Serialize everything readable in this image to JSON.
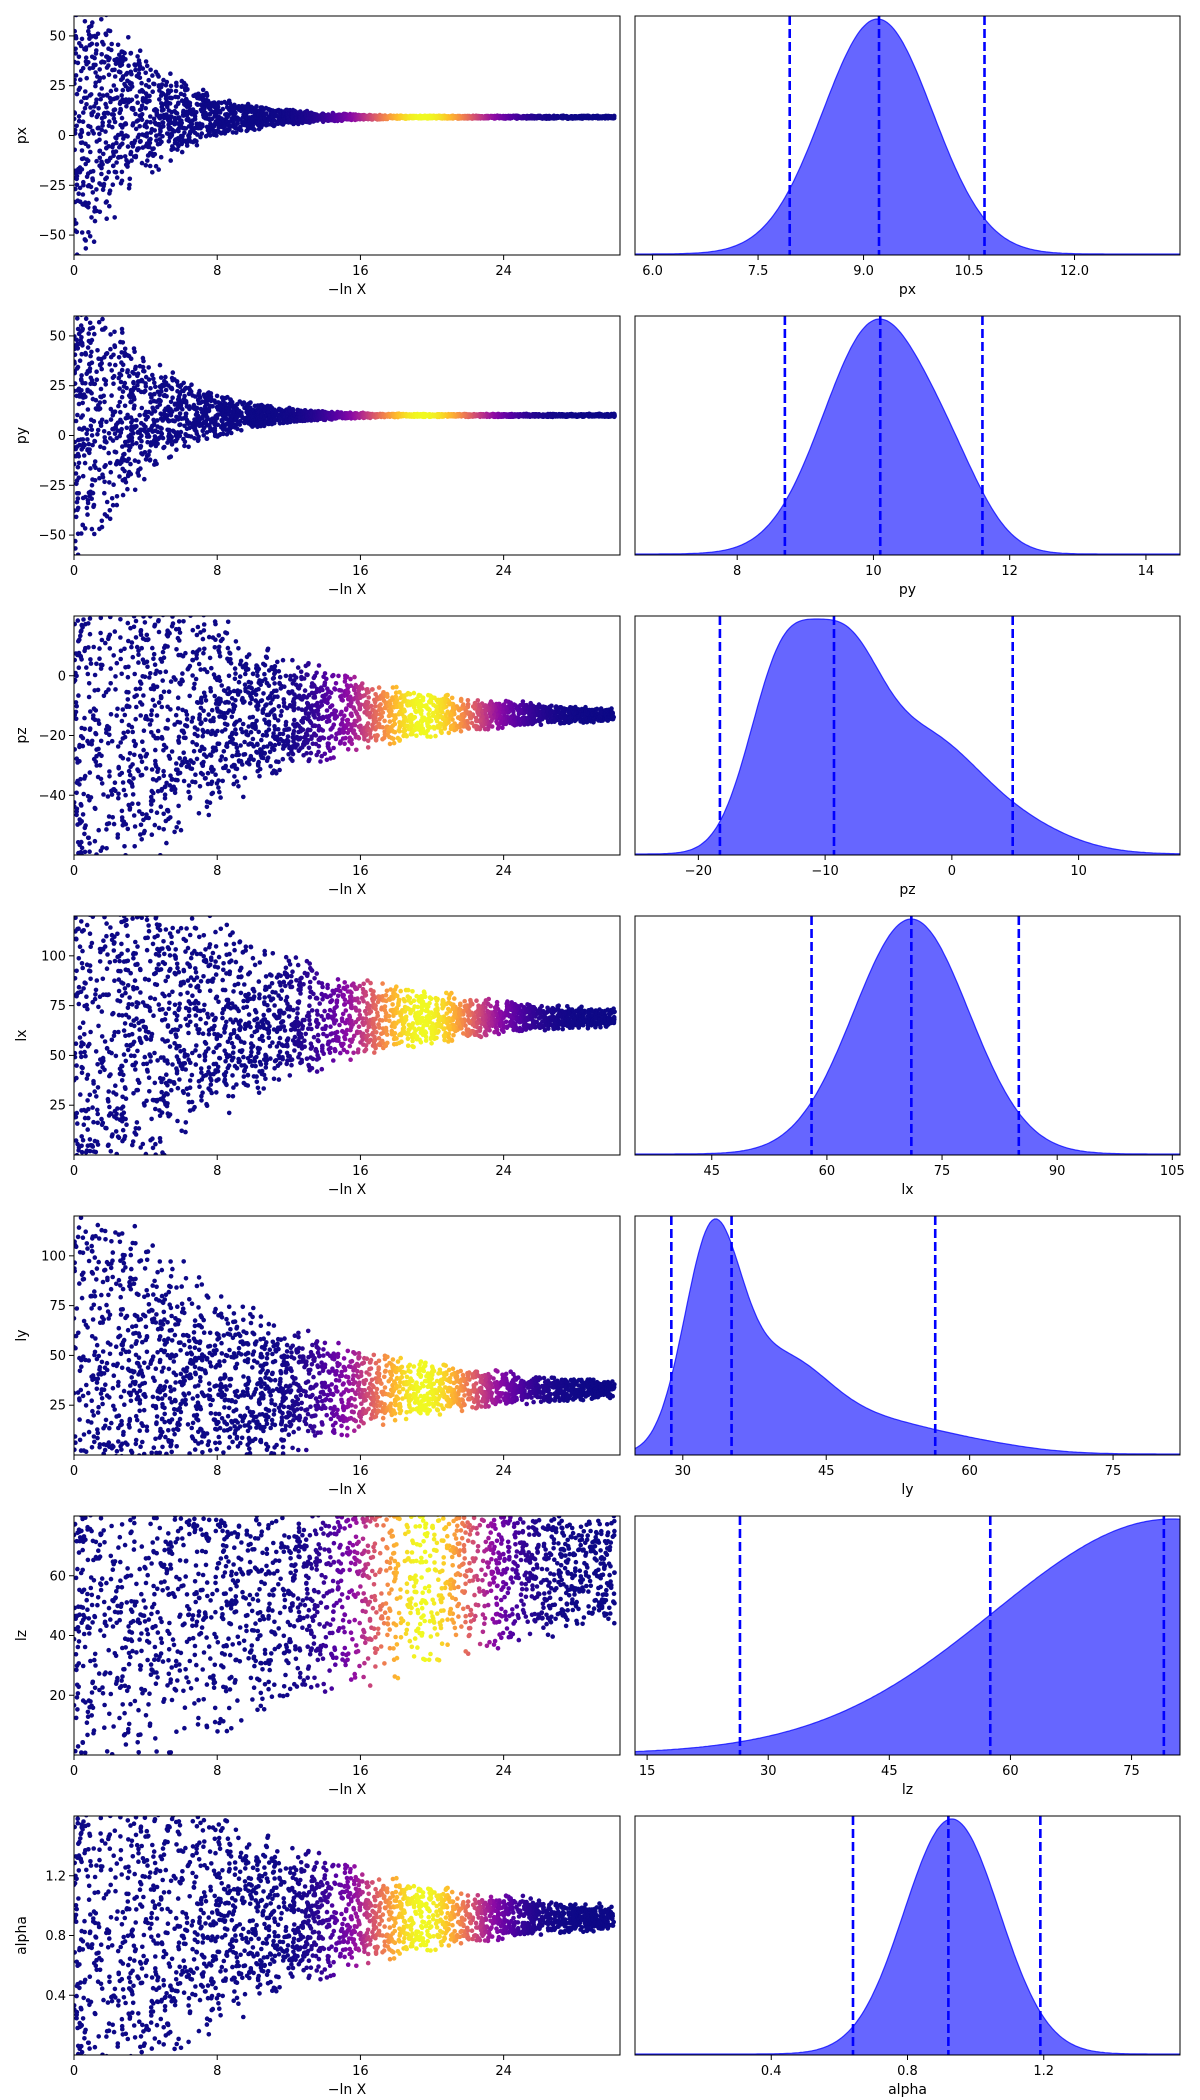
{
  "chart_data": [
    {
      "panel": "trace",
      "type": "scatter",
      "ylabel": "px",
      "xlabel": "−ln X",
      "xlim": [
        0,
        30.5
      ],
      "xticks": [
        0,
        8,
        16,
        24
      ],
      "ylim": [
        -60,
        60
      ],
      "yticks": [
        -50,
        -25,
        0,
        25,
        50
      ],
      "shape": {
        "converge": 9.2,
        "start_halfwidth": 95,
        "decay": 0.26,
        "min_halfwidth": 0.8,
        "peak_x": 19.5,
        "peak_width": 3.5
      },
      "colormap": "plasma"
    },
    {
      "panel": "posterior",
      "type": "area",
      "xlabel": "px",
      "xlim": [
        5.75,
        13.5
      ],
      "xticks": [
        6.0,
        7.5,
        9.0,
        10.5,
        12.0
      ],
      "tick_labels": [
        "6.0",
        "7.5",
        "9.0",
        "10.5",
        "12.0"
      ],
      "density": {
        "components": [
          {
            "mu": 9.2,
            "sigma": 0.78,
            "w": 1.0
          }
        ]
      },
      "quantile_lines": [
        7.95,
        9.22,
        10.72
      ],
      "color": "#0000ff"
    },
    {
      "panel": "trace",
      "type": "scatter",
      "ylabel": "py",
      "xlabel": "−ln X",
      "xlim": [
        0,
        30.5
      ],
      "xticks": [
        0,
        8,
        16,
        24
      ],
      "ylim": [
        -60,
        60
      ],
      "yticks": [
        -50,
        -25,
        0,
        25,
        50
      ],
      "shape": {
        "converge": 10.1,
        "start_halfwidth": 95,
        "decay": 0.26,
        "min_halfwidth": 0.8,
        "peak_x": 19.5,
        "peak_width": 3.5
      },
      "colormap": "plasma"
    },
    {
      "panel": "posterior",
      "type": "area",
      "xlabel": "py",
      "xlim": [
        6.5,
        14.5
      ],
      "xticks": [
        8,
        10,
        12,
        14
      ],
      "tick_labels": [
        "8",
        "10",
        "12",
        "14"
      ],
      "density": {
        "components": [
          {
            "mu": 10.05,
            "sigma": 0.78,
            "w": 1.0
          },
          {
            "mu": 11.2,
            "sigma": 0.5,
            "w": 0.18
          }
        ]
      },
      "quantile_lines": [
        8.7,
        10.1,
        11.6
      ],
      "color": "#0000ff"
    },
    {
      "panel": "trace",
      "type": "scatter",
      "ylabel": "pz",
      "xlabel": "−ln X",
      "xlim": [
        0,
        30.5
      ],
      "xticks": [
        0,
        8,
        16,
        24
      ],
      "ylim": [
        -60,
        20
      ],
      "yticks": [
        -40,
        -20,
        0
      ],
      "shape": {
        "converge": -13,
        "start_halfwidth": 90,
        "decay": 0.12,
        "min_halfwidth": 2.5,
        "peak_x": 19.5,
        "peak_width": 3.8
      },
      "colormap": "plasma"
    },
    {
      "panel": "posterior",
      "type": "area",
      "xlabel": "pz",
      "xlim": [
        -25,
        18
      ],
      "xticks": [
        -20,
        -10,
        0,
        10
      ],
      "tick_labels": [
        "−20",
        "−10",
        "0",
        "10"
      ],
      "density": {
        "components": [
          {
            "mu": -13.5,
            "sigma": 2.6,
            "w": 0.95
          },
          {
            "mu": -8.5,
            "sigma": 2.8,
            "w": 0.9
          },
          {
            "mu": -2.5,
            "sigma": 4.0,
            "w": 0.55
          },
          {
            "mu": 4,
            "sigma": 4.5,
            "w": 0.18
          }
        ]
      },
      "quantile_lines": [
        -18.3,
        -9.3,
        4.8
      ],
      "color": "#0000ff"
    },
    {
      "panel": "trace",
      "type": "scatter",
      "ylabel": "lx",
      "xlabel": "−ln X",
      "xlim": [
        0,
        30.5
      ],
      "xticks": [
        0,
        8,
        16,
        24
      ],
      "ylim": [
        0,
        120
      ],
      "yticks": [
        25,
        50,
        75,
        100
      ],
      "shape": {
        "converge": 69,
        "start_halfwidth": 130,
        "decay": 0.11,
        "min_halfwidth": 2.0,
        "peak_x": 19.5,
        "peak_width": 3.8
      },
      "colormap": "plasma"
    },
    {
      "panel": "posterior",
      "type": "area",
      "xlabel": "lx",
      "xlim": [
        35,
        106
      ],
      "xticks": [
        45,
        60,
        75,
        90,
        105
      ],
      "tick_labels": [
        "45",
        "60",
        "75",
        "90",
        "105"
      ],
      "density": {
        "components": [
          {
            "mu": 71,
            "sigma": 7.5,
            "w": 1.0
          }
        ]
      },
      "quantile_lines": [
        58,
        71,
        85
      ],
      "color": "#0000ff"
    },
    {
      "panel": "trace",
      "type": "scatter",
      "ylabel": "ly",
      "xlabel": "−ln X",
      "xlim": [
        0,
        30.5
      ],
      "xticks": [
        0,
        8,
        16,
        24
      ],
      "ylim": [
        0,
        120
      ],
      "yticks": [
        25,
        50,
        75,
        100
      ],
      "shape": {
        "converge": 33,
        "start_halfwidth": 130,
        "decay": 0.11,
        "min_halfwidth": 2.0,
        "peak_x": 19.5,
        "peak_width": 3.8
      },
      "colormap": "plasma"
    },
    {
      "panel": "posterior",
      "type": "area",
      "xlabel": "ly",
      "xlim": [
        25,
        82
      ],
      "xticks": [
        30,
        45,
        60,
        75
      ],
      "tick_labels": [
        "30",
        "45",
        "60",
        "75"
      ],
      "density": {
        "components": [
          {
            "mu": 33,
            "sigma": 2.9,
            "w": 1.0
          },
          {
            "mu": 40,
            "sigma": 5.0,
            "w": 0.45
          },
          {
            "mu": 50,
            "sigma": 6.0,
            "w": 0.14
          },
          {
            "mu": 60,
            "sigma": 6.0,
            "w": 0.05
          }
        ]
      },
      "quantile_lines": [
        28.8,
        35.1,
        56.4
      ],
      "color": "#0000ff"
    },
    {
      "panel": "trace",
      "type": "scatter",
      "ylabel": "lz",
      "xlabel": "−ln X",
      "xlim": [
        0,
        30.5
      ],
      "xticks": [
        0,
        8,
        16,
        24
      ],
      "ylim": [
        0,
        80
      ],
      "yticks": [
        20,
        40,
        60
      ],
      "shape": {
        "converge": 62,
        "start_halfwidth": 90,
        "decay": 0.05,
        "min_halfwidth": 14,
        "peak_x": 19.5,
        "peak_width": 3.5
      },
      "colormap": "plasma"
    },
    {
      "panel": "posterior",
      "type": "area",
      "xlabel": "lz",
      "xlim": [
        13.5,
        81
      ],
      "xticks": [
        15,
        30,
        45,
        60,
        75
      ],
      "tick_labels": [
        "15",
        "30",
        "45",
        "60",
        "75"
      ],
      "density": {
        "components": [
          {
            "mu": 80,
            "sigma": 22,
            "w": 1.0
          }
        ]
      },
      "quantile_lines": [
        26.5,
        57.5,
        79
      ],
      "color": "#0000ff"
    },
    {
      "panel": "trace",
      "type": "scatter",
      "ylabel": "alpha",
      "xlabel": "−ln X",
      "xlim": [
        0,
        30.5
      ],
      "xticks": [
        0,
        8,
        16,
        24
      ],
      "ylim": [
        0,
        1.6
      ],
      "yticks": [
        0.4,
        0.8,
        1.2
      ],
      "tick_labels_y": [
        "0.4",
        "0.8",
        "1.2"
      ],
      "shape": {
        "converge": 0.92,
        "start_halfwidth": 1.8,
        "decay": 0.1,
        "min_halfwidth": 0.03,
        "peak_x": 19.5,
        "peak_width": 3.5
      },
      "colormap": "plasma"
    },
    {
      "panel": "posterior",
      "type": "area",
      "xlabel": "alpha",
      "xlim": [
        0,
        1.6
      ],
      "xticks": [
        0.4,
        0.8,
        1.2
      ],
      "tick_labels": [
        "0.4",
        "0.8",
        "1.2"
      ],
      "density": {
        "components": [
          {
            "mu": 0.93,
            "sigma": 0.14,
            "w": 1.0
          }
        ]
      },
      "quantile_lines": [
        0.64,
        0.92,
        1.19
      ],
      "color": "#0000ff"
    }
  ]
}
